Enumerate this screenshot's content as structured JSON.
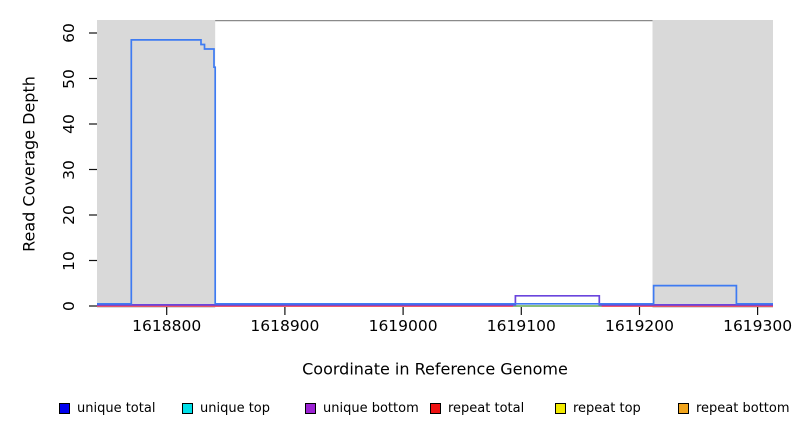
{
  "chart_data": {
    "type": "line",
    "subtype": "step-coverage-plot",
    "title": "",
    "xlabel": "Coordinate in Reference Genome",
    "ylabel": "Read Coverage Depth",
    "xlim": [
      1618741,
      1619313
    ],
    "ylim": [
      0,
      63
    ],
    "x_ticks": [
      1618800,
      1618900,
      1619000,
      1619100,
      1619200,
      1619300
    ],
    "y_ticks": [
      0,
      10,
      20,
      30,
      40,
      50,
      60
    ],
    "grid": "off",
    "frame_top_only": true,
    "shaded_regions": [
      {
        "name": "repeat-region-left",
        "from": 1618741,
        "to": 1618841
      },
      {
        "name": "repeat-region-right",
        "from": 1619211,
        "to": 1619313
      }
    ],
    "series": [
      {
        "name": "repeat total",
        "color": "#ee4455",
        "points": [
          [
            1618741,
            0
          ]
        ],
        "end": 1619313
      },
      {
        "name": "unique top",
        "color": "#7cc87c",
        "points": [
          [
            1619093,
            0
          ]
        ],
        "end": 1619168
      },
      {
        "name": "unique bottom",
        "color": "#6a45dd",
        "points": [
          [
            1618741,
            0
          ],
          [
            1619095,
            2
          ],
          [
            1619166,
            0
          ]
        ],
        "end": 1619313
      },
      {
        "name": "unique total",
        "color": "#3e7bf2",
        "points": [
          [
            1618741,
            0
          ],
          [
            1618770,
            58
          ],
          [
            1618829,
            57
          ],
          [
            1618832,
            56
          ],
          [
            1618840,
            52
          ],
          [
            1618841,
            0
          ],
          [
            1619212,
            4
          ],
          [
            1619282,
            0
          ]
        ],
        "end": 1619313
      }
    ],
    "legend_position": "bottom",
    "legend": [
      {
        "label": "unique total",
        "color": "#0000ee"
      },
      {
        "label": "unique top",
        "color": "#00dfe8"
      },
      {
        "label": "unique bottom",
        "color": "#9c22d4"
      },
      {
        "label": "repeat total",
        "color": "#ee1111"
      },
      {
        "label": "repeat top",
        "color": "#f2ea00"
      },
      {
        "label": "repeat bottom",
        "color": "#f0a41c"
      }
    ],
    "colors": {
      "shaded_region": "#d9d9d9",
      "frame": "#8a8a8a",
      "tick": "#111111"
    }
  }
}
